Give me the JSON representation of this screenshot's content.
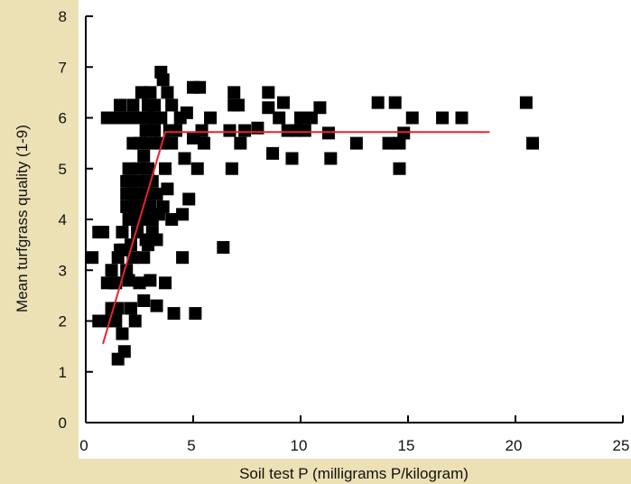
{
  "colors": {
    "page_background": "#ece0b5",
    "plot_background": "#ffffff",
    "points": "#000000",
    "fit_line": "#e8242a",
    "axis": "#000000"
  },
  "chart_data": {
    "type": "scatter",
    "xlabel": "Soil test P (milligrams P/kilogram)",
    "ylabel": "Mean turfgrass quality (1-9)",
    "xlim": [
      0,
      25
    ],
    "ylim": [
      0,
      8
    ],
    "x_ticks": [
      0,
      5,
      10,
      15,
      20,
      25
    ],
    "y_ticks": [
      0,
      1,
      2,
      3,
      4,
      5,
      6,
      7,
      8
    ],
    "grid": false,
    "legend": "none",
    "marker": "square",
    "points": [
      [
        0.3,
        3.25
      ],
      [
        0.6,
        3.75
      ],
      [
        0.6,
        2.0
      ],
      [
        0.8,
        3.75
      ],
      [
        1.0,
        2.75
      ],
      [
        1.0,
        2.0
      ],
      [
        1.0,
        6.0
      ],
      [
        1.2,
        2.25
      ],
      [
        1.2,
        3.0
      ],
      [
        1.3,
        2.75
      ],
      [
        1.4,
        2.75
      ],
      [
        1.4,
        2.0
      ],
      [
        1.5,
        2.25
      ],
      [
        1.5,
        3.25
      ],
      [
        1.5,
        1.25
      ],
      [
        1.5,
        6.0
      ],
      [
        1.6,
        3.4
      ],
      [
        1.6,
        6.25
      ],
      [
        1.7,
        3.75
      ],
      [
        1.7,
        1.75
      ],
      [
        1.8,
        1.4
      ],
      [
        1.8,
        3.4
      ],
      [
        1.8,
        6.0
      ],
      [
        1.9,
        4.75
      ],
      [
        1.9,
        4.5
      ],
      [
        1.9,
        4.25
      ],
      [
        1.9,
        3.0
      ],
      [
        2.0,
        2.8
      ],
      [
        2.0,
        4.0
      ],
      [
        2.0,
        5.0
      ],
      [
        2.0,
        6.0
      ],
      [
        2.1,
        4.75
      ],
      [
        2.1,
        3.5
      ],
      [
        2.1,
        2.25
      ],
      [
        2.2,
        4.5
      ],
      [
        2.2,
        3.25
      ],
      [
        2.2,
        5.5
      ],
      [
        2.2,
        6.25
      ],
      [
        2.3,
        4.25
      ],
      [
        2.3,
        2.0
      ],
      [
        2.3,
        6.0
      ],
      [
        2.4,
        4.0
      ],
      [
        2.4,
        3.75
      ],
      [
        2.4,
        4.75
      ],
      [
        2.5,
        5.0
      ],
      [
        2.5,
        4.5
      ],
      [
        2.5,
        2.75
      ],
      [
        2.5,
        5.5
      ],
      [
        2.6,
        4.25
      ],
      [
        2.6,
        6.0
      ],
      [
        2.6,
        6.5
      ],
      [
        2.7,
        4.0
      ],
      [
        2.7,
        2.4
      ],
      [
        2.7,
        3.25
      ],
      [
        2.7,
        5.25
      ],
      [
        2.8,
        4.75
      ],
      [
        2.8,
        3.6
      ],
      [
        2.8,
        5.75
      ],
      [
        2.9,
        5.0
      ],
      [
        2.9,
        4.5
      ],
      [
        2.9,
        6.25
      ],
      [
        2.9,
        3.5
      ],
      [
        3.0,
        4.25
      ],
      [
        3.0,
        6.0
      ],
      [
        3.0,
        5.5
      ],
      [
        3.0,
        2.8
      ],
      [
        3.0,
        6.5
      ],
      [
        3.1,
        4.0
      ],
      [
        3.1,
        3.75
      ],
      [
        3.1,
        4.75
      ],
      [
        3.2,
        5.75
      ],
      [
        3.2,
        6.25
      ],
      [
        3.3,
        4.5
      ],
      [
        3.3,
        2.3
      ],
      [
        3.3,
        3.6
      ],
      [
        3.4,
        4.1
      ],
      [
        3.5,
        5.5
      ],
      [
        3.5,
        6.0
      ],
      [
        3.5,
        6.9
      ],
      [
        3.6,
        6.75
      ],
      [
        3.6,
        4.25
      ],
      [
        3.7,
        5.0
      ],
      [
        3.7,
        2.75
      ],
      [
        3.8,
        6.5
      ],
      [
        3.8,
        4.6
      ],
      [
        3.9,
        5.75
      ],
      [
        4.0,
        5.5
      ],
      [
        4.0,
        4.0
      ],
      [
        4.0,
        6.25
      ],
      [
        4.1,
        2.15
      ],
      [
        4.2,
        5.75
      ],
      [
        4.4,
        6.0
      ],
      [
        4.5,
        4.1
      ],
      [
        4.5,
        3.25
      ],
      [
        4.6,
        5.2
      ],
      [
        4.7,
        6.1
      ],
      [
        4.8,
        4.4
      ],
      [
        5.0,
        6.6
      ],
      [
        5.0,
        5.6
      ],
      [
        5.1,
        2.15
      ],
      [
        5.2,
        5.0
      ],
      [
        5.3,
        6.6
      ],
      [
        5.4,
        5.75
      ],
      [
        5.5,
        5.5
      ],
      [
        5.8,
        6.0
      ],
      [
        6.4,
        3.45
      ],
      [
        6.7,
        5.75
      ],
      [
        6.8,
        5.0
      ],
      [
        6.9,
        6.25
      ],
      [
        6.9,
        6.5
      ],
      [
        7.1,
        6.25
      ],
      [
        7.2,
        5.5
      ],
      [
        7.4,
        5.75
      ],
      [
        8.0,
        5.8
      ],
      [
        8.5,
        6.5
      ],
      [
        8.5,
        6.2
      ],
      [
        8.7,
        5.3
      ],
      [
        9.0,
        6.0
      ],
      [
        9.2,
        6.3
      ],
      [
        9.4,
        5.75
      ],
      [
        9.6,
        5.2
      ],
      [
        9.8,
        5.75
      ],
      [
        10.0,
        6.0
      ],
      [
        10.2,
        5.75
      ],
      [
        10.5,
        6.0
      ],
      [
        10.9,
        6.2
      ],
      [
        11.3,
        5.7
      ],
      [
        11.4,
        5.2
      ],
      [
        12.6,
        5.5
      ],
      [
        13.6,
        6.3
      ],
      [
        14.1,
        5.5
      ],
      [
        14.4,
        6.3
      ],
      [
        14.6,
        5.0
      ],
      [
        14.6,
        5.5
      ],
      [
        14.8,
        5.7
      ],
      [
        15.2,
        6.0
      ],
      [
        16.6,
        6.0
      ],
      [
        17.5,
        6.0
      ],
      [
        20.5,
        6.3
      ],
      [
        20.8,
        5.5
      ]
    ],
    "fit_line": [
      [
        0.8,
        1.55
      ],
      [
        3.7,
        5.72
      ],
      [
        18.8,
        5.72
      ]
    ]
  }
}
